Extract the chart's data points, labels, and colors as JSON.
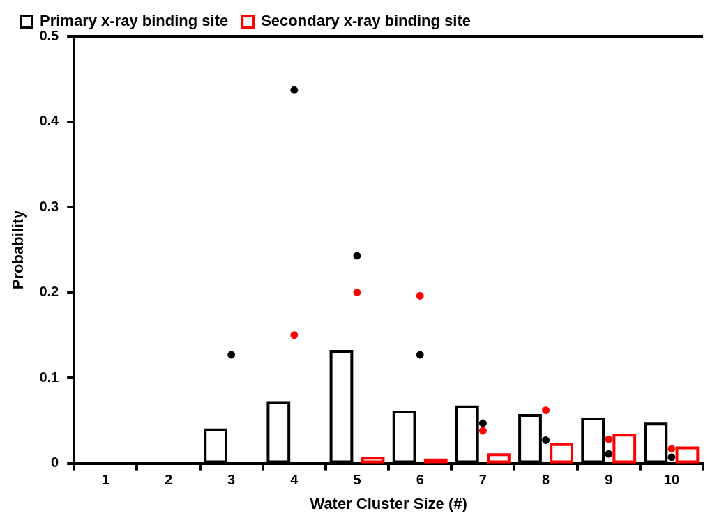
{
  "chart_data": {
    "type": "bar",
    "categories": [
      "1",
      "2",
      "3",
      "4",
      "5",
      "6",
      "7",
      "8",
      "9",
      "10"
    ],
    "xlabel": "Water Cluster Size (#)",
    "ylabel": "Probability",
    "series": [
      {
        "name": "Primary x-ray binding site",
        "color": "#000000",
        "values": [
          null,
          null,
          0.039,
          0.071,
          0.131,
          0.06,
          0.066,
          0.056,
          0.052,
          0.046
        ]
      },
      {
        "name": "Secondary x-ray binding site",
        "color": "#ff0000",
        "values": [
          null,
          null,
          null,
          null,
          0.006,
          0.004,
          0.01,
          0.022,
          0.033,
          0.018
        ]
      },
      {
        "type": "scatter",
        "color": "#000000",
        "x": [
          "1",
          "2",
          "3",
          "4",
          "5",
          "6",
          "7",
          "8",
          "9",
          "10"
        ],
        "values": [
          null,
          null,
          0.127,
          0.437,
          0.243,
          0.127,
          0.047,
          0.027,
          0.011,
          0.007
        ]
      },
      {
        "type": "scatter",
        "color": "#ff0000",
        "x": [
          "1",
          "2",
          "3",
          "4",
          "5",
          "6",
          "7",
          "8",
          "9",
          "10"
        ],
        "values": [
          null,
          null,
          null,
          0.15,
          0.2,
          0.196,
          0.038,
          0.062,
          0.028,
          0.017
        ]
      }
    ],
    "ylim": [
      0,
      0.5
    ],
    "yticks": [
      0,
      0.1,
      0.2,
      0.3,
      0.4,
      0.5
    ],
    "grid": false,
    "legend": "top",
    "marker": "circle"
  }
}
